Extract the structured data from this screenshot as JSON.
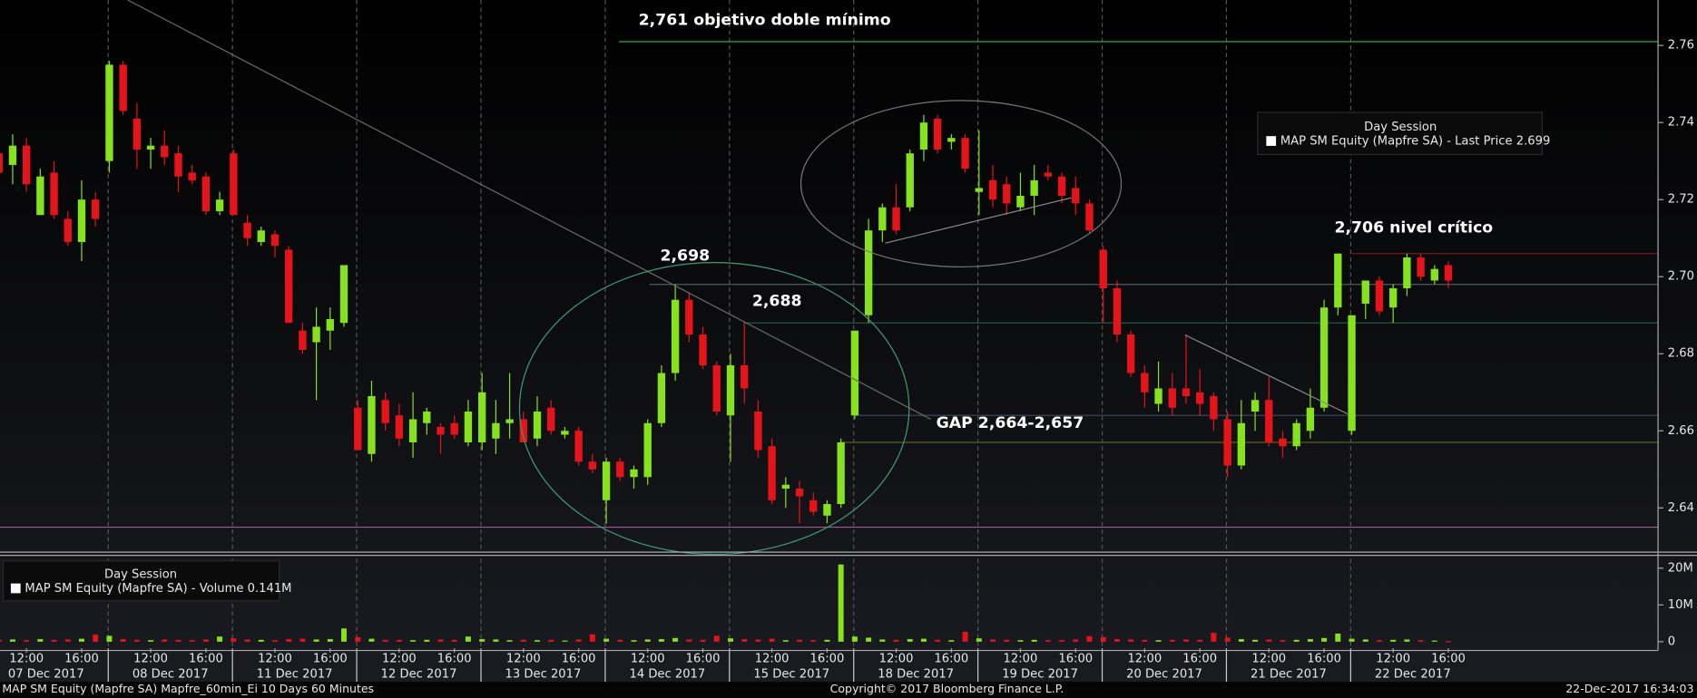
{
  "chart_data": {
    "type": "candlestick",
    "days": [
      "07 Dec 2017",
      "08 Dec 2017",
      "11 Dec 2017",
      "12 Dec 2017",
      "13 Dec 2017",
      "14 Dec 2017",
      "15 Dec 2017",
      "18 Dec 2017",
      "19 Dec 2017",
      "20 Dec 2017",
      "21 Dec 2017",
      "22 Dec 2017"
    ],
    "categories": [
      null,
      null,
      null,
      "12:00",
      null,
      null,
      null,
      "16:00",
      null,
      null,
      null,
      null,
      "12:00",
      null,
      null,
      null,
      "16:00",
      null,
      null,
      null,
      null,
      "12:00",
      null,
      null,
      null,
      "16:00",
      null,
      null,
      null,
      null,
      "12:00",
      null,
      null,
      null,
      "16:00",
      null,
      null,
      null,
      null,
      "12:00",
      null,
      null,
      null,
      "16:00",
      null,
      null,
      null,
      null,
      "12:00",
      null,
      null,
      null,
      "16:00",
      null,
      null,
      null,
      null,
      "12:00",
      null,
      null,
      null,
      "16:00",
      null,
      null,
      null,
      null,
      "12:00",
      null,
      null,
      null,
      "16:00",
      null,
      null,
      null,
      null,
      "12:00",
      null,
      null,
      null,
      "16:00",
      null,
      null,
      null,
      null,
      "12:00",
      null,
      null,
      null,
      "16:00",
      null,
      null,
      null,
      null,
      "12:00",
      null,
      null,
      null,
      "16:00",
      null,
      null,
      null,
      null,
      "12:00",
      null,
      null,
      null,
      "16:00"
    ],
    "open": [
      null,
      2.732,
      2.729,
      2.734,
      2.716,
      2.727,
      2.715,
      2.709,
      2.72,
      2.73,
      2.755,
      2.741,
      2.733,
      2.734,
      2.732,
      2.727,
      2.726,
      2.717,
      2.732,
      2.714,
      2.709,
      2.711,
      2.707,
      2.686,
      2.683,
      2.686,
      2.688,
      2.666,
      2.654,
      2.668,
      2.664,
      2.657,
      2.662,
      2.661,
      2.662,
      2.657,
      2.657,
      2.658,
      2.662,
      2.663,
      2.658,
      2.666,
      2.659,
      2.66,
      2.652,
      2.642,
      2.652,
      2.648,
      2.648,
      2.662,
      2.675,
      2.694,
      2.685,
      2.677,
      2.664,
      2.677,
      2.665,
      2.656,
      2.645,
      2.645,
      2.642,
      2.638,
      2.641,
      2.664,
      2.69,
      2.712,
      2.718,
      2.718,
      2.733,
      2.741,
      2.735,
      2.736,
      2.722,
      2.725,
      2.724,
      2.718,
      2.721,
      2.727,
      2.726,
      2.723,
      2.719,
      2.707,
      2.697,
      2.685,
      2.675,
      2.667,
      2.671,
      2.671,
      2.67,
      2.669,
      2.663,
      2.651,
      2.665,
      2.668,
      2.658,
      2.656,
      2.66,
      2.666,
      2.692,
      2.66,
      2.693,
      2.699,
      2.692,
      2.697,
      2.705,
      2.699,
      2.703
    ],
    "high": [
      null,
      2.735,
      2.737,
      2.736,
      2.728,
      2.73,
      2.717,
      2.725,
      2.722,
      2.756,
      2.756,
      2.745,
      2.736,
      2.738,
      2.734,
      2.729,
      2.727,
      2.722,
      2.733,
      2.716,
      2.713,
      2.712,
      2.708,
      2.688,
      2.692,
      2.692,
      2.703,
      2.668,
      2.673,
      2.67,
      2.667,
      2.67,
      2.666,
      2.662,
      2.664,
      2.668,
      2.675,
      2.668,
      2.675,
      2.665,
      2.669,
      2.668,
      2.661,
      2.661,
      2.654,
      2.653,
      2.653,
      2.651,
      2.663,
      2.677,
      2.698,
      2.696,
      2.687,
      2.678,
      2.68,
      2.688,
      2.668,
      2.658,
      2.648,
      2.647,
      2.644,
      2.642,
      2.658,
      2.686,
      2.715,
      2.719,
      2.724,
      2.733,
      2.742,
      2.742,
      2.737,
      2.737,
      2.738,
      2.729,
      2.726,
      2.727,
      2.729,
      2.729,
      2.727,
      2.726,
      2.72,
      2.708,
      2.699,
      2.686,
      2.677,
      2.678,
      2.675,
      2.685,
      2.676,
      2.67,
      2.665,
      2.668,
      2.67,
      2.674,
      2.66,
      2.663,
      2.671,
      2.694,
      2.706,
      2.69,
      2.699,
      2.7,
      2.698,
      2.706,
      2.706,
      2.703,
      2.704
    ],
    "low": [
      null,
      2.725,
      2.724,
      2.722,
      2.716,
      2.715,
      2.708,
      2.704,
      2.713,
      2.727,
      2.742,
      2.728,
      2.728,
      2.729,
      2.722,
      2.724,
      2.716,
      2.716,
      2.716,
      2.708,
      2.708,
      2.705,
      2.688,
      2.68,
      2.668,
      2.681,
      2.687,
      2.655,
      2.652,
      2.66,
      2.656,
      2.653,
      2.659,
      2.654,
      2.658,
      2.656,
      2.655,
      2.654,
      2.658,
      2.657,
      2.656,
      2.659,
      2.658,
      2.651,
      2.649,
      2.636,
      2.647,
      2.645,
      2.646,
      2.661,
      2.673,
      2.683,
      2.676,
      2.664,
      2.652,
      2.667,
      2.653,
      2.641,
      2.64,
      2.636,
      2.638,
      2.636,
      2.64,
      2.663,
      2.688,
      2.709,
      2.711,
      2.717,
      2.73,
      2.732,
      2.733,
      2.727,
      2.716,
      2.718,
      2.716,
      2.717,
      2.716,
      2.725,
      2.719,
      2.716,
      2.711,
      2.688,
      2.683,
      2.674,
      2.666,
      2.665,
      2.664,
      2.667,
      2.664,
      2.66,
      2.648,
      2.65,
      2.66,
      2.656,
      2.653,
      2.655,
      2.658,
      2.665,
      2.69,
      2.659,
      2.689,
      2.69,
      2.688,
      2.695,
      2.699,
      2.698,
      2.697
    ],
    "close": [
      null,
      2.727,
      2.734,
      2.724,
      2.726,
      2.716,
      2.709,
      2.72,
      2.715,
      2.755,
      2.743,
      2.733,
      2.734,
      2.731,
      2.726,
      2.725,
      2.717,
      2.72,
      2.716,
      2.71,
      2.712,
      2.708,
      2.688,
      2.681,
      2.687,
      2.689,
      2.703,
      2.655,
      2.669,
      2.662,
      2.658,
      2.663,
      2.665,
      2.659,
      2.659,
      2.665,
      2.67,
      2.662,
      2.663,
      2.657,
      2.665,
      2.66,
      2.66,
      2.652,
      2.65,
      2.652,
      2.648,
      2.65,
      2.662,
      2.675,
      2.694,
      2.685,
      2.677,
      2.665,
      2.677,
      2.671,
      2.655,
      2.642,
      2.646,
      2.643,
      2.639,
      2.641,
      2.657,
      2.686,
      2.712,
      2.718,
      2.712,
      2.732,
      2.74,
      2.733,
      2.736,
      2.728,
      2.723,
      2.72,
      2.719,
      2.721,
      2.725,
      2.726,
      2.721,
      2.719,
      2.712,
      2.697,
      2.685,
      2.675,
      2.67,
      2.671,
      2.666,
      2.669,
      2.667,
      2.663,
      2.651,
      2.662,
      2.668,
      2.657,
      2.656,
      2.662,
      2.666,
      2.692,
      2.706,
      2.69,
      2.699,
      2.691,
      2.697,
      2.705,
      2.7,
      2.702,
      2.699
    ],
    "volume": [
      null,
      0.5,
      0.6,
      0.4,
      0.7,
      0.5,
      0.6,
      0.8,
      1.9,
      1.6,
      0.7,
      0.5,
      0.4,
      0.6,
      0.5,
      0.4,
      0.6,
      1.4,
      0.9,
      0.6,
      0.5,
      0.4,
      0.7,
      0.8,
      0.6,
      0.7,
      3.6,
      1.2,
      0.8,
      0.5,
      0.5,
      0.4,
      0.5,
      0.6,
      0.5,
      1.4,
      0.7,
      0.6,
      0.4,
      0.5,
      0.4,
      0.5,
      0.3,
      0.6,
      2.0,
      0.8,
      0.5,
      0.4,
      0.6,
      0.7,
      1.0,
      0.6,
      0.5,
      1.6,
      0.9,
      0.7,
      0.6,
      0.8,
      0.4,
      0.5,
      0.4,
      0.5,
      21.0,
      1.4,
      1.1,
      0.6,
      0.5,
      0.7,
      0.8,
      0.5,
      0.4,
      2.7,
      0.9,
      0.6,
      0.5,
      0.4,
      0.5,
      0.4,
      0.4,
      0.6,
      1.5,
      1.2,
      0.7,
      0.6,
      0.5,
      0.4,
      0.5,
      0.6,
      0.5,
      2.4,
      1.1,
      0.7,
      0.5,
      0.6,
      0.4,
      0.5,
      0.7,
      1.0,
      2.2,
      0.8,
      0.6,
      0.4,
      0.5,
      0.6,
      0.4,
      0.3,
      0.141
    ],
    "up_color": "#86e21e",
    "down_color": "#e5141b",
    "ylim": [
      2.6288,
      2.7718
    ],
    "yticks": [
      2.64,
      2.66,
      2.68,
      {
        "value": 2.7,
        "label": "2.70"
      },
      2.72,
      2.74,
      2.76
    ],
    "volume_ylim": [
      -1.8,
      22.6
    ],
    "volume_yticks": [
      {
        "value": 0,
        "label": "0"
      },
      {
        "value": 10,
        "label": "10M"
      },
      {
        "value": 20,
        "label": "20M"
      }
    ],
    "levels": [
      {
        "value": 2.761,
        "color": "#2fbf3a"
      },
      {
        "value": 2.706,
        "color": "#6e1c1c"
      },
      {
        "value": 2.698,
        "color": "#4f5e60"
      },
      {
        "value": 2.688,
        "color": "#1d5a3a"
      },
      {
        "value": 2.664,
        "color": "#34475a"
      },
      {
        "value": 2.657,
        "color": "#5d5c1c"
      },
      {
        "value": 2.635,
        "color": "#a0589a"
      }
    ],
    "annotations": [
      "2,761 objetivo doble mínimo",
      "2,698",
      "2,688",
      "GAP 2,664-2,657",
      "2,706 nivel crítico"
    ],
    "price_legend": {
      "title": "Day Session",
      "entry": "MAP SM Equity (Mapfre SA) - Last Price 2.699"
    },
    "volume_legend": {
      "title": "Day Session",
      "entry": "MAP SM Equity (Mapfre SA) - Volume 0.141M"
    },
    "footer": {
      "left": "MAP SM Equity (Mapfre SA) Mapfre_60min_Ei 10 Days 60 Minutes",
      "center": "Copyright© 2017 Bloomberg Finance L.P.",
      "right": "22-Dec-2017 16:34:03"
    }
  }
}
